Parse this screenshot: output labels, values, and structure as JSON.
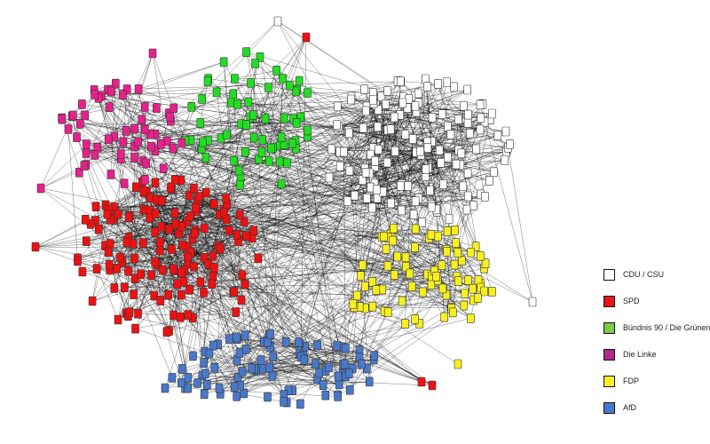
{
  "legend": {
    "items": [
      {
        "label": "CDU / CSU",
        "color": "#ffffff"
      },
      {
        "label": "SPD",
        "color": "#e8141c"
      },
      {
        "label": "Bündnis 90 / Die Grünen",
        "color": "#7ec850"
      },
      {
        "label": "Die Linke",
        "color": "#b0288c"
      },
      {
        "label": "FDP",
        "color": "#f7f01e"
      },
      {
        "label": "AfD",
        "color": "#4a78c8"
      }
    ]
  },
  "network": {
    "edge_color": "#000000",
    "node_border": "#333333",
    "clusters": [
      {
        "party": "CDU / CSU",
        "color": "#ffffff",
        "approx_nodes": 140
      },
      {
        "party": "SPD",
        "color": "#ee1111",
        "approx_nodes": 150
      },
      {
        "party": "Bündnis 90 / Die Grünen",
        "color": "#22dd22",
        "approx_nodes": 65
      },
      {
        "party": "Die Linke",
        "color": "#e8208c",
        "approx_nodes": 60
      },
      {
        "party": "FDP",
        "color": "#f7f01e",
        "approx_nodes": 80
      },
      {
        "party": "AfD",
        "color": "#4a78c8",
        "approx_nodes": 90
      }
    ]
  }
}
